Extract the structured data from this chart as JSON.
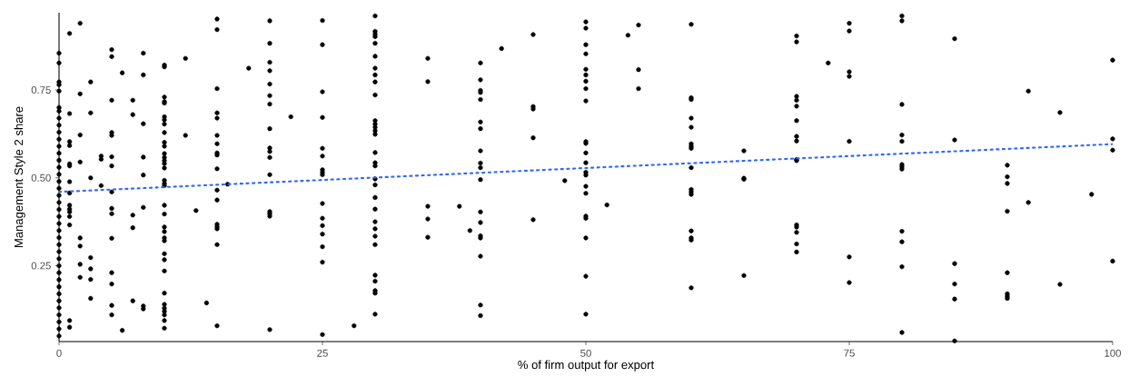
{
  "chart_data": {
    "type": "scatter",
    "xlabel": "% of firm output for export",
    "ylabel": "Management Style 2 share",
    "xlim": [
      0,
      100
    ],
    "ylim": [
      0.034,
      0.97
    ],
    "xticks": [
      0,
      25,
      50,
      75,
      100
    ],
    "yticks": [
      {
        "value": 0.25,
        "label": "0.25"
      },
      {
        "value": 0.5,
        "label": "0.50"
      },
      {
        "value": 0.75,
        "label": "0.75"
      }
    ],
    "grid": false,
    "series": [
      {
        "color": "#000000",
        "marker": "circle",
        "x": [
          0,
          0,
          0,
          0,
          0,
          0,
          0,
          0,
          0,
          0,
          0,
          0,
          0,
          0,
          0,
          0,
          0,
          0,
          0,
          0,
          0,
          0,
          0,
          0,
          0,
          0,
          0,
          0,
          0,
          0,
          0,
          0,
          0,
          0,
          0,
          0,
          0,
          0,
          0,
          1,
          1,
          1,
          1,
          1,
          1,
          1,
          1,
          1,
          1,
          1,
          1,
          1,
          1,
          1,
          2,
          2,
          2,
          2,
          2,
          2,
          2,
          2,
          3,
          3,
          3,
          3,
          3,
          3,
          3,
          4,
          4,
          4,
          5,
          5,
          5,
          5,
          5,
          5,
          5,
          5,
          5,
          5,
          5,
          5,
          5,
          5,
          5,
          6,
          6,
          7,
          7,
          7,
          7,
          7,
          8,
          8,
          8,
          8,
          8,
          8,
          8,
          8,
          10,
          10,
          10,
          10,
          10,
          10,
          10,
          10,
          10,
          10,
          10,
          10,
          10,
          10,
          10,
          10,
          10,
          10,
          10,
          10,
          10,
          10,
          10,
          10,
          10,
          10,
          10,
          10,
          10,
          10,
          10,
          10,
          10,
          10,
          10,
          12,
          12,
          13,
          14,
          15,
          15,
          15,
          15,
          15,
          15,
          15,
          15,
          15,
          15,
          15,
          15,
          15,
          15,
          15,
          15,
          15,
          16,
          18,
          20,
          20,
          20,
          20,
          20,
          20,
          20,
          20,
          20,
          20,
          20,
          20,
          20,
          20,
          20,
          20,
          22,
          25,
          25,
          25,
          25,
          25,
          25,
          25,
          25,
          25,
          25,
          25,
          25,
          25,
          25,
          25,
          25,
          28,
          30,
          30,
          30,
          30,
          30,
          30,
          30,
          30,
          30,
          30,
          30,
          30,
          30,
          30,
          30,
          30,
          30,
          30,
          30,
          30,
          30,
          30,
          30,
          30,
          30,
          30,
          30,
          30,
          30,
          30,
          30,
          35,
          35,
          35,
          35,
          35,
          38,
          39,
          40,
          40,
          40,
          40,
          40,
          40,
          40,
          40,
          40,
          40,
          40,
          40,
          40,
          40,
          40,
          40,
          40,
          40,
          42,
          45,
          45,
          45,
          45,
          45,
          48,
          50,
          50,
          50,
          50,
          50,
          50,
          50,
          50,
          50,
          50,
          50,
          50,
          50,
          50,
          50,
          50,
          50,
          50,
          50,
          50,
          50,
          50,
          52,
          54,
          55,
          55,
          55,
          60,
          60,
          60,
          60,
          60,
          60,
          60,
          60,
          60,
          60,
          60,
          60,
          60,
          60,
          60,
          60,
          65,
          65,
          65,
          65,
          70,
          70,
          70,
          70,
          70,
          70,
          70,
          70,
          70,
          70,
          70,
          70,
          70,
          70,
          70,
          73,
          75,
          75,
          75,
          75,
          75,
          75,
          75,
          80,
          80,
          80,
          80,
          80,
          80,
          80,
          80,
          80,
          80,
          80,
          80,
          85,
          85,
          85,
          85,
          85,
          85,
          90,
          90,
          90,
          90,
          90,
          90,
          90,
          90,
          92,
          92,
          95,
          95,
          98,
          100,
          100,
          100,
          100
        ],
        "values": [
          0.855,
          0.827,
          0.773,
          0.765,
          0.747,
          0.7,
          0.69,
          0.67,
          0.65,
          0.63,
          0.61,
          0.59,
          0.57,
          0.55,
          0.53,
          0.51,
          0.49,
          0.47,
          0.45,
          0.43,
          0.41,
          0.39,
          0.37,
          0.35,
          0.33,
          0.31,
          0.29,
          0.27,
          0.25,
          0.23,
          0.21,
          0.19,
          0.17,
          0.15,
          0.13,
          0.11,
          0.09,
          0.07,
          0.05,
          0.911,
          0.683,
          0.603,
          0.592,
          0.54,
          0.534,
          0.489,
          0.457,
          0.422,
          0.411,
          0.403,
          0.39,
          0.366,
          0.094,
          0.075,
          0.94,
          0.739,
          0.622,
          0.545,
          0.329,
          0.306,
          0.254,
          0.217,
          0.773,
          0.685,
          0.5,
          0.273,
          0.241,
          0.211,
          0.157,
          0.562,
          0.553,
          0.478,
          0.865,
          0.845,
          0.721,
          0.629,
          0.621,
          0.56,
          0.534,
          0.46,
          0.413,
          0.398,
          0.328,
          0.23,
          0.198,
          0.137,
          0.11,
          0.066,
          0.799,
          0.721,
          0.68,
          0.394,
          0.358,
          0.15,
          0.855,
          0.793,
          0.654,
          0.559,
          0.508,
          0.416,
          0.135,
          0.127,
          0.821,
          0.816,
          0.73,
          0.717,
          0.713,
          0.674,
          0.665,
          0.653,
          0.629,
          0.601,
          0.59,
          0.569,
          0.558,
          0.549,
          0.541,
          0.528,
          0.493,
          0.484,
          0.478,
          0.422,
          0.397,
          0.36,
          0.347,
          0.329,
          0.321,
          0.284,
          0.267,
          0.235,
          0.172,
          0.14,
          0.129,
          0.12,
          0.11,
          0.094,
          0.072,
          0.84,
          0.621,
          0.407,
          0.144,
          0.952,
          0.922,
          0.754,
          0.685,
          0.67,
          0.621,
          0.597,
          0.571,
          0.565,
          0.526,
          0.465,
          0.437,
          0.368,
          0.361,
          0.355,
          0.31,
          0.079,
          0.482,
          0.812,
          0.947,
          0.883,
          0.829,
          0.805,
          0.767,
          0.734,
          0.71,
          0.64,
          0.585,
          0.575,
          0.558,
          0.509,
          0.404,
          0.398,
          0.391,
          0.068,
          0.674,
          0.948,
          0.879,
          0.745,
          0.672,
          0.584,
          0.562,
          0.523,
          0.516,
          0.509,
          0.427,
          0.385,
          0.364,
          0.34,
          0.304,
          0.26,
          0.054,
          0.079,
          0.961,
          0.917,
          0.909,
          0.902,
          0.883,
          0.846,
          0.812,
          0.793,
          0.773,
          0.736,
          0.663,
          0.653,
          0.644,
          0.634,
          0.624,
          0.572,
          0.543,
          0.534,
          0.497,
          0.48,
          0.444,
          0.411,
          0.375,
          0.355,
          0.334,
          0.31,
          0.223,
          0.206,
          0.179,
          0.172,
          0.112,
          0.84,
          0.774,
          0.419,
          0.383,
          0.331,
          0.419,
          0.35,
          0.827,
          0.779,
          0.749,
          0.743,
          0.723,
          0.659,
          0.64,
          0.577,
          0.542,
          0.529,
          0.495,
          0.403,
          0.373,
          0.335,
          0.329,
          0.277,
          0.138,
          0.108,
          0.868,
          0.908,
          0.703,
          0.696,
          0.614,
          0.381,
          0.492,
          0.944,
          0.926,
          0.879,
          0.853,
          0.809,
          0.793,
          0.775,
          0.754,
          0.719,
          0.603,
          0.598,
          0.571,
          0.543,
          0.516,
          0.508,
          0.476,
          0.456,
          0.391,
          0.385,
          0.329,
          0.22,
          0.112,
          0.423,
          0.906,
          0.935,
          0.808,
          0.754,
          0.937,
          0.728,
          0.723,
          0.67,
          0.644,
          0.597,
          0.59,
          0.584,
          0.529,
          0.467,
          0.46,
          0.453,
          0.349,
          0.329,
          0.323,
          0.187,
          0.577,
          0.499,
          0.496,
          0.222,
          0.904,
          0.887,
          0.732,
          0.721,
          0.704,
          0.663,
          0.618,
          0.605,
          0.552,
          0.549,
          0.366,
          0.36,
          0.345,
          0.312,
          0.289,
          0.827,
          0.94,
          0.918,
          0.802,
          0.789,
          0.604,
          0.275,
          0.202,
          0.961,
          0.947,
          0.709,
          0.622,
          0.604,
          0.538,
          0.532,
          0.525,
          0.348,
          0.318,
          0.247,
          0.06,
          0.896,
          0.608,
          0.256,
          0.198,
          0.155,
          0.036,
          0.536,
          0.503,
          0.484,
          0.405,
          0.23,
          0.17,
          0.163,
          0.157,
          0.747,
          0.43,
          0.686,
          0.197,
          0.453,
          0.835,
          0.611,
          0.579,
          0.263
        ]
      },
      {
        "type": "line",
        "color": "#3366ff",
        "line_style": "dotted",
        "marker": "none",
        "x": [
          0,
          100
        ],
        "values": [
          0.46,
          0.596
        ]
      }
    ]
  }
}
